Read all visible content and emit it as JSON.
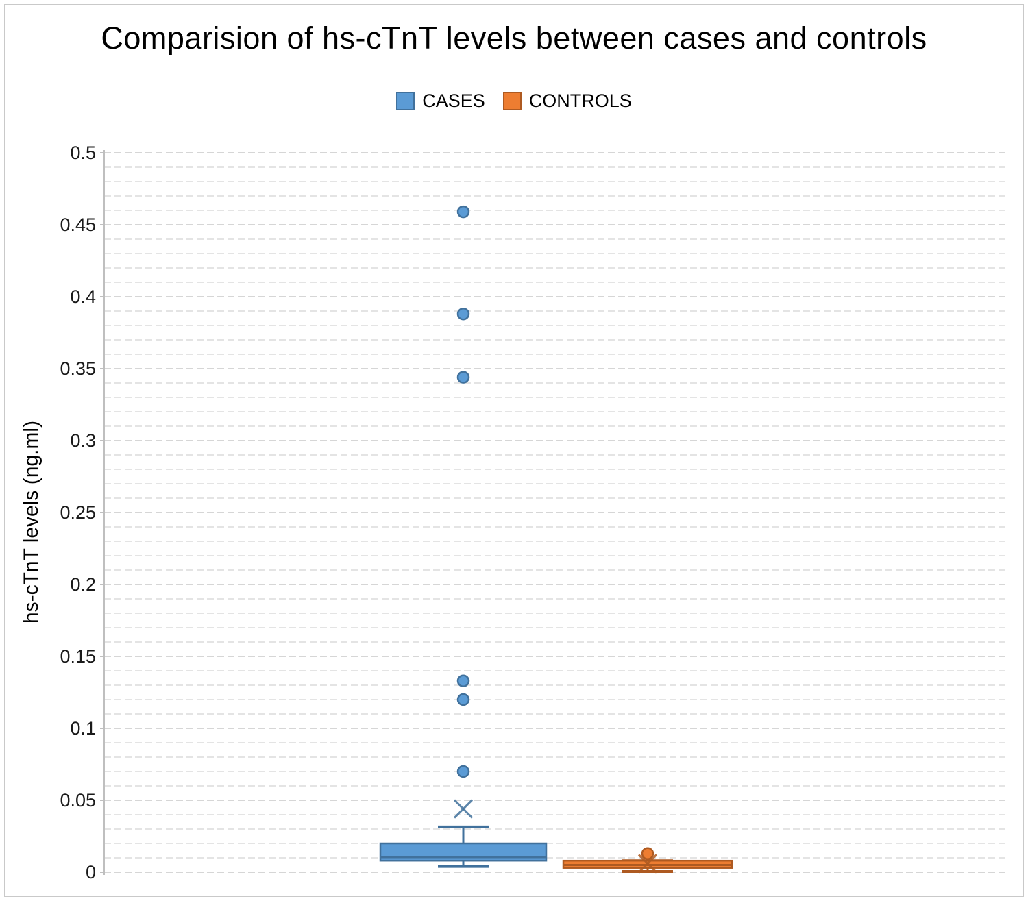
{
  "figure": {
    "background": "#ffffff",
    "border_color": "#c9c9c9"
  },
  "chart_data": {
    "type": "boxplot",
    "title": "Comparision of hs-cTnT levels between cases and controls",
    "ylabel": "hs-cTnT levels (ng.ml)",
    "xlabel": "",
    "ylim": [
      0,
      0.5
    ],
    "ytick_step": 0.05,
    "minor_grid_step": 0.01,
    "grid": true,
    "legend_position": "top",
    "ytick_labels": [
      "0",
      "0.05",
      "0.1",
      "0.15",
      "0.2",
      "0.25",
      "0.3",
      "0.35",
      "0.4",
      "0.45",
      "0.5"
    ],
    "series": [
      {
        "name": "CASES",
        "fill": "#5B9BD5",
        "stroke": "#41719C",
        "min": 0.004,
        "q1": 0.008,
        "median": 0.0105,
        "q3": 0.02,
        "max": 0.0315,
        "mean": 0.044,
        "outliers": [
          0.07,
          0.12,
          0.133,
          0.344,
          0.388,
          0.459
        ]
      },
      {
        "name": "CONTROLS",
        "fill": "#ED7D31",
        "stroke": "#AE5A21",
        "min": 0.0005,
        "q1": 0.003,
        "median": 0.005,
        "q3": 0.008,
        "max": 0.008,
        "mean": 0.006,
        "outliers": [
          0.013
        ]
      }
    ],
    "axis_color": "#bfbfbf",
    "gridline_major_color": "#c9c9c9",
    "gridline_minor_color": "#dcdcdc"
  }
}
